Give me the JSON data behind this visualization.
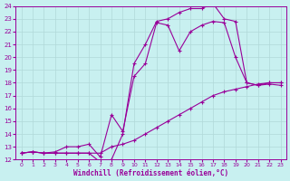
{
  "xlabel": "Windchill (Refroidissement éolien,°C)",
  "bg_color": "#c8f0f0",
  "line_color": "#990099",
  "grid_color": "#b0d8d8",
  "xlim": [
    -0.5,
    23.5
  ],
  "ylim": [
    12,
    24
  ],
  "yticks": [
    12,
    13,
    14,
    15,
    16,
    17,
    18,
    19,
    20,
    21,
    22,
    23,
    24
  ],
  "xticks": [
    0,
    1,
    2,
    3,
    4,
    5,
    6,
    7,
    8,
    9,
    10,
    11,
    12,
    13,
    14,
    15,
    16,
    17,
    18,
    19,
    20,
    21,
    22,
    23
  ],
  "line1_x": [
    0,
    1,
    2,
    3,
    4,
    5,
    6,
    7,
    8,
    9,
    10,
    11,
    12,
    13,
    14,
    15,
    16,
    17,
    18,
    19,
    20,
    21,
    22,
    23
  ],
  "line1_y": [
    12.5,
    12.6,
    12.5,
    12.5,
    12.5,
    12.5,
    12.5,
    12.5,
    13.0,
    13.2,
    13.5,
    14.0,
    14.5,
    15.0,
    15.5,
    16.0,
    16.5,
    17.0,
    17.3,
    17.5,
    17.7,
    17.9,
    18.0,
    18.0
  ],
  "line2_x": [
    0,
    1,
    2,
    3,
    4,
    5,
    6,
    7,
    8,
    9,
    10,
    11,
    12,
    13,
    14,
    15,
    16,
    17,
    18,
    19,
    20,
    21,
    22,
    23
  ],
  "line2_y": [
    12.5,
    12.6,
    12.5,
    12.6,
    13.0,
    13.0,
    13.2,
    12.2,
    15.5,
    14.2,
    18.5,
    19.5,
    22.7,
    22.5,
    20.5,
    22.0,
    22.5,
    22.8,
    22.7,
    20.0,
    18.0,
    17.8,
    17.9,
    17.8
  ],
  "line3_x": [
    0,
    1,
    2,
    3,
    4,
    5,
    6,
    7,
    8,
    9,
    10,
    11,
    12,
    13,
    14,
    15,
    16,
    17,
    18,
    19,
    20,
    21,
    22,
    23
  ],
  "line3_y": [
    12.5,
    12.6,
    12.5,
    12.5,
    12.5,
    12.5,
    12.5,
    11.8,
    12.0,
    14.0,
    19.5,
    21.0,
    22.8,
    23.0,
    23.5,
    23.8,
    23.8,
    24.2,
    23.0,
    22.8,
    18.0,
    17.8,
    18.0,
    18.0
  ]
}
